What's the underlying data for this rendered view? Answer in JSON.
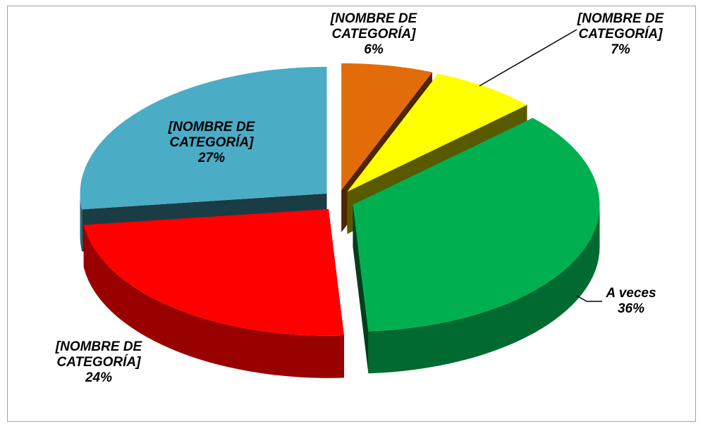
{
  "chart_data": {
    "type": "pie",
    "categories": [
      "[NOMBRE DE CATEGORÍA]",
      "[NOMBRE DE CATEGORÍA]",
      "A veces",
      "[NOMBRE DE CATEGORÍA]",
      "[NOMBRE DE CATEGORÍA]"
    ],
    "values": [
      6,
      7,
      36,
      24,
      27
    ],
    "value_labels": [
      "6%",
      "7%",
      "36%",
      "24%",
      "27%"
    ],
    "colors": [
      "#e36c0a",
      "#ffff00",
      "#00b050",
      "#ff0000",
      "#4bacc6"
    ]
  }
}
